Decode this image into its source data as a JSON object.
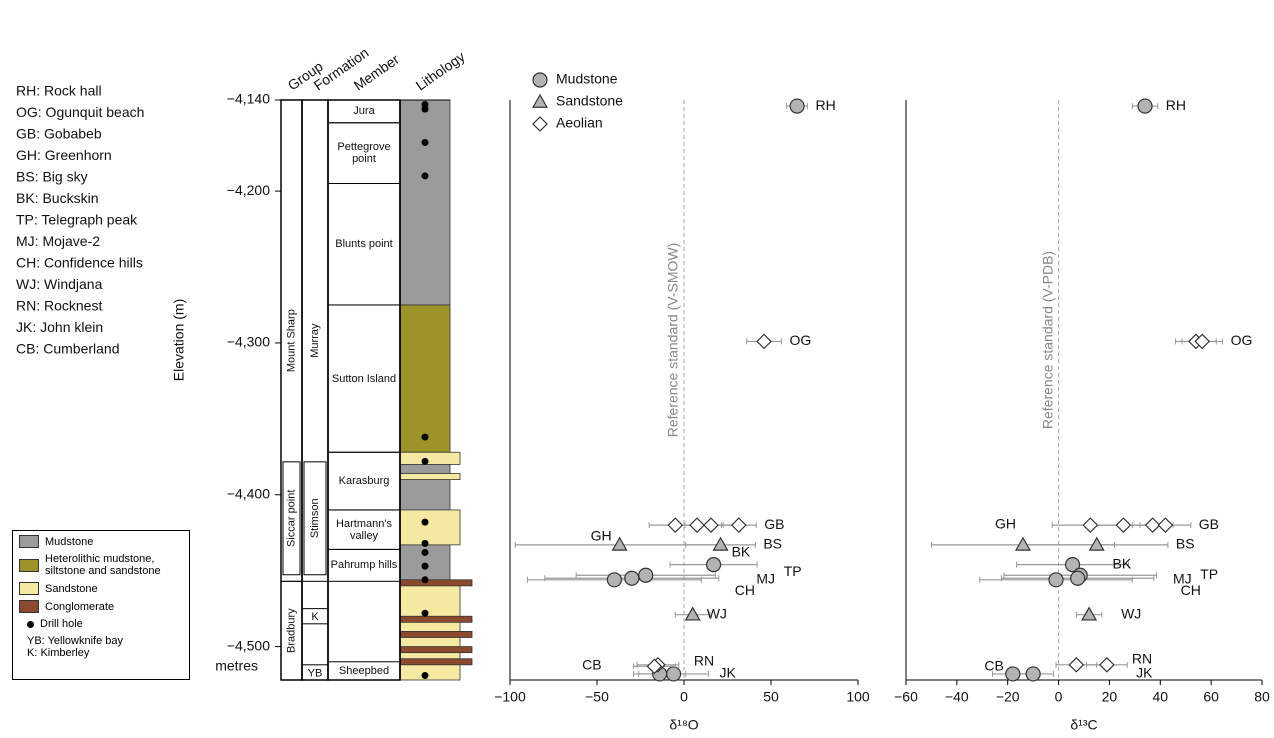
{
  "abbreviations": [
    "RH: Rock hall",
    "OG: Ogunquit beach",
    "GB: Gobabeb",
    "GH: Greenhorn",
    "BS: Big sky",
    "BK: Buckskin",
    "TP: Telegraph peak",
    "MJ: Mojave-2",
    "CH: Confidence hills",
    "WJ: Windjana",
    "RN: Rocknest",
    "JK: John klein",
    "CB: Cumberland"
  ],
  "chart_data": [
    {
      "type": "column",
      "ylabel": "Elevation (m)",
      "unit_label": "metres",
      "ylim": [
        -4522,
        -4140
      ],
      "yticks": [
        {
          "value": -4140,
          "label": "−4,140"
        },
        {
          "value": -4200,
          "label": "−4,200"
        },
        {
          "value": -4300,
          "label": "−4,300"
        },
        {
          "value": -4400,
          "label": "−4,400"
        },
        {
          "value": -4500,
          "label": "−4,500"
        }
      ],
      "headers": [
        "Group",
        "Formation",
        "Member",
        "Lithology"
      ],
      "groups": [
        {
          "name": "Mount Sharp",
          "top": -4140,
          "bottom": -4457
        },
        {
          "name": "Siccar point",
          "top": -4377,
          "bottom": -4454
        },
        {
          "name": "Bradbury",
          "top": -4457,
          "bottom": -4522
        }
      ],
      "formations": [
        {
          "name": "Murray",
          "top": -4140,
          "bottom": -4457
        },
        {
          "name": "Stimson",
          "top": -4377,
          "bottom": -4454
        },
        {
          "name": "K",
          "top": -4475,
          "bottom": -4485
        },
        {
          "name": "YB",
          "top": -4512,
          "bottom": -4522
        }
      ],
      "members": [
        {
          "name": "Jura",
          "top": -4140,
          "bottom": -4155
        },
        {
          "name": "Pettegrove point",
          "top": -4155,
          "bottom": -4195
        },
        {
          "name": "Blunts point",
          "top": -4195,
          "bottom": -4275
        },
        {
          "name": "Sutton Island",
          "top": -4275,
          "bottom": -4372
        },
        {
          "name": "Karasburg",
          "top": -4372,
          "bottom": -4410
        },
        {
          "name": "Hartmann's valley",
          "top": -4410,
          "bottom": -4436
        },
        {
          "name": "Pahrump hills",
          "top": -4436,
          "bottom": -4457
        },
        {
          "name": "Sheepbed",
          "top": -4510,
          "bottom": -4522
        }
      ],
      "lithologies": [
        {
          "name": "Mudstone",
          "color": "#9b9b9b",
          "intervals": [
            [
              -4140,
              -4275
            ],
            [
              -4372,
              -4457
            ]
          ]
        },
        {
          "name": "Heterolithic mudstone, siltstone and sandstone",
          "color": "#9c9428",
          "intervals": [
            [
              -4275,
              -4372
            ]
          ]
        },
        {
          "name": "Sandstone",
          "color": "#f6e9a2",
          "intervals": [
            [
              -4372,
              -4380
            ],
            [
              -4386,
              -4390
            ],
            [
              -4410,
              -4433
            ],
            [
              -4457,
              -4522
            ]
          ]
        },
        {
          "name": "Conglomerate",
          "color": "#8b4a2f",
          "intervals": [
            [
              -4456,
              -4460
            ],
            [
              -4480,
              -4484
            ],
            [
              -4490,
              -4494
            ],
            [
              -4500,
              -4504
            ],
            [
              -4508,
              -4512
            ]
          ]
        }
      ],
      "drill_hole": {
        "name": "Drill hole",
        "elevations": [
          -4143,
          -4146,
          -4168,
          -4190,
          -4362,
          -4378,
          -4418,
          -4432,
          -4438,
          -4447,
          -4456,
          -4478,
          -4519
        ]
      },
      "notes": [
        "YB: Yellowknife bay",
        "K: Kimberley"
      ]
    },
    {
      "type": "scatter",
      "xlabel": "δ¹⁸O",
      "xlim": [
        -100,
        100
      ],
      "xticks": [
        {
          "value": -100,
          "label": "−100"
        },
        {
          "value": -50,
          "label": "−50"
        },
        0,
        50,
        100
      ],
      "ylim": [
        -4522,
        -4140
      ],
      "legend": "top-left",
      "reference": {
        "value": 0,
        "label": "Reference standard (V-SMOW)"
      },
      "series": [
        {
          "name": "Mudstone",
          "marker": "circle",
          "color": "#b3b3b3",
          "x": [
            65,
            17,
            -22,
            -30,
            -40,
            -6,
            -14
          ],
          "x_err": [
            6,
            25,
            40,
            50,
            50,
            20,
            15
          ],
          "y": [
            -4144,
            -4446,
            -4453,
            -4455,
            -4456,
            -4518,
            -4518
          ],
          "labels": [
            "RH",
            "BK",
            "TP",
            "CH",
            "MJ",
            "JK",
            "CB"
          ]
        },
        {
          "name": "Sandstone",
          "marker": "triangle",
          "color": "#b3b3b3",
          "x": [
            -37,
            21,
            5
          ],
          "x_err": [
            60,
            20,
            10
          ],
          "y": [
            -4433,
            -4433,
            -4479
          ],
          "labels": [
            "GH",
            "BS",
            "WJ"
          ]
        },
        {
          "name": "Aeolian",
          "marker": "diamond",
          "color": "#ffffff",
          "x": [
            46,
            -5,
            7.5,
            15.5,
            31.5,
            -15,
            -17
          ],
          "x_err": [
            10,
            15,
            15,
            15,
            10,
            12,
            12
          ],
          "y": [
            -4299,
            -4420,
            -4420,
            -4420,
            -4420,
            -4512,
            -4513
          ],
          "labels": [
            "OG",
            null,
            null,
            null,
            "GB",
            "RN",
            null
          ]
        }
      ]
    },
    {
      "type": "scatter",
      "xlabel": "δ¹³C",
      "xlim": [
        -60,
        80
      ],
      "xticks": [
        {
          "value": -60,
          "label": "−60"
        },
        {
          "value": -40,
          "label": "−40"
        },
        {
          "value": -20,
          "label": "−20"
        },
        0,
        20,
        40,
        60,
        80
      ],
      "ylim": [
        -4522,
        -4140
      ],
      "reference": {
        "value": 0,
        "label": "Reference standard (V-PDB)"
      },
      "series": [
        {
          "name": "Mudstone",
          "marker": "circle",
          "color": "#b3b3b3",
          "x": [
            34,
            5.5,
            8.5,
            7.5,
            -1,
            -10,
            -18
          ],
          "x_err": [
            5,
            22,
            30,
            30,
            30,
            8,
            8
          ],
          "y": [
            -4144,
            -4446,
            -4453,
            -4455,
            -4456,
            -4518,
            -4518
          ],
          "labels": [
            "RH",
            "BK",
            "TP",
            "CH",
            "MJ",
            "JK",
            "CB"
          ]
        },
        {
          "name": "Sandstone",
          "marker": "triangle",
          "color": "#b3b3b3",
          "x": [
            -14,
            15,
            12
          ],
          "x_err": [
            36,
            28,
            5
          ],
          "y": [
            -4433,
            -4433,
            -4479
          ],
          "labels": [
            "GH",
            "BS",
            "WJ"
          ]
        },
        {
          "name": "Aeolian",
          "marker": "diamond",
          "color": "#ffffff",
          "x": [
            54,
            56.5,
            12.5,
            25.5,
            37,
            42,
            19,
            7
          ],
          "x_err": [
            8,
            8,
            15,
            15,
            8,
            10,
            8,
            8
          ],
          "y": [
            -4299,
            -4299,
            -4420,
            -4420,
            -4420,
            -4420,
            -4512,
            -4512
          ],
          "labels": [
            null,
            "OG",
            null,
            null,
            null,
            "GB",
            "RN",
            null
          ]
        }
      ]
    }
  ]
}
